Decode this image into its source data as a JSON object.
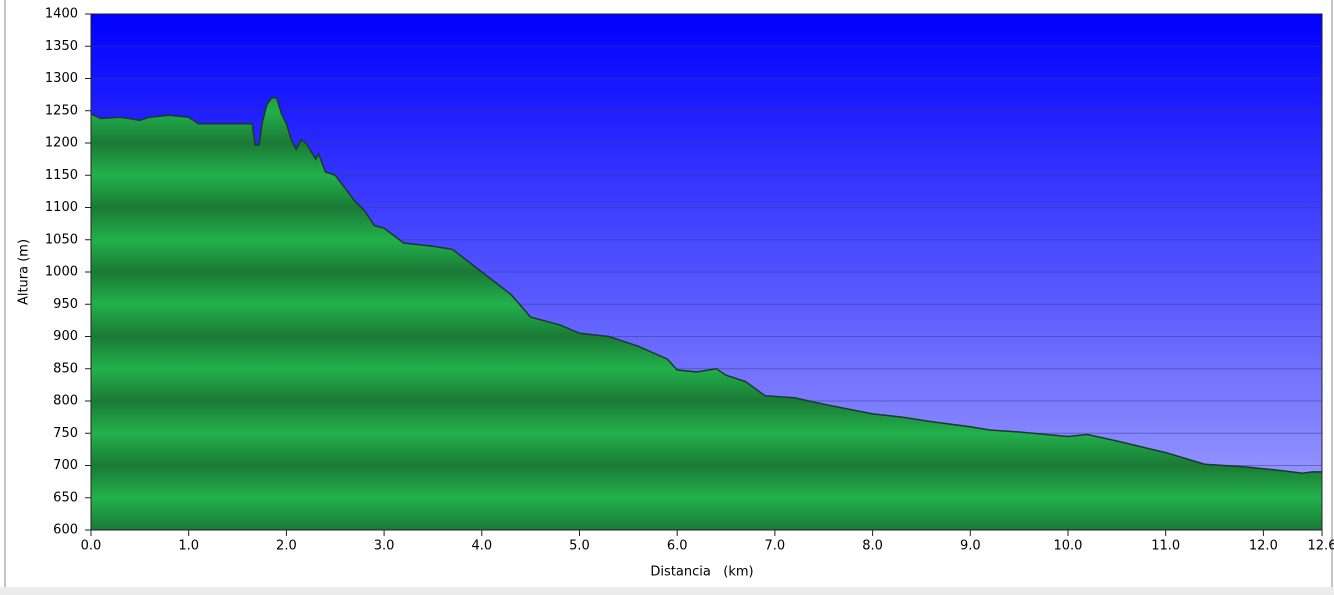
{
  "chart_data": {
    "type": "area",
    "x_label": "Distancia   (km)",
    "y_label": "Altura (m)",
    "xlim": [
      0,
      12.6
    ],
    "ylim": [
      600,
      1400
    ],
    "xticks": [
      {
        "value": 0,
        "label": "0.0"
      },
      {
        "value": 1,
        "label": "1.0"
      },
      {
        "value": 2,
        "label": "2.0"
      },
      {
        "value": 3,
        "label": "3.0"
      },
      {
        "value": 4,
        "label": "4.0"
      },
      {
        "value": 5,
        "label": "5.0"
      },
      {
        "value": 6,
        "label": "6.0"
      },
      {
        "value": 7,
        "label": "7.0"
      },
      {
        "value": 8,
        "label": "8.0"
      },
      {
        "value": 9,
        "label": "9.0"
      },
      {
        "value": 10,
        "label": "10.0"
      },
      {
        "value": 11,
        "label": "11.0"
      },
      {
        "value": 12,
        "label": "12.0"
      },
      {
        "value": 12.6,
        "label": "12.6"
      }
    ],
    "yticks": [
      600,
      650,
      700,
      750,
      800,
      850,
      900,
      950,
      1000,
      1050,
      1100,
      1150,
      1200,
      1250,
      1300,
      1350,
      1400
    ],
    "grid": true,
    "series": [
      {
        "color": "#1fa844",
        "x": [
          0,
          0.1,
          0.3,
          0.5,
          0.6,
          0.8,
          1.0,
          1.1,
          1.4,
          1.65,
          1.68,
          1.72,
          1.75,
          1.8,
          1.85,
          1.9,
          1.95,
          2.0,
          2.05,
          2.1,
          2.15,
          2.2,
          2.3,
          2.33,
          2.4,
          2.5,
          2.6,
          2.7,
          2.8,
          2.9,
          3.0,
          3.2,
          3.5,
          3.7,
          4.0,
          4.3,
          4.5,
          4.8,
          5.0,
          5.3,
          5.6,
          5.9,
          6.0,
          6.2,
          6.4,
          6.5,
          6.7,
          6.9,
          7.2,
          7.5,
          8.0,
          8.3,
          8.6,
          9.0,
          9.2,
          9.5,
          10.0,
          10.2,
          10.5,
          11.0,
          11.4,
          11.8,
          12.2,
          12.4,
          12.5,
          12.6
        ],
        "values": [
          1245,
          1238,
          1240,
          1235,
          1240,
          1243,
          1240,
          1230,
          1230,
          1230,
          1197,
          1197,
          1230,
          1260,
          1270,
          1270,
          1245,
          1230,
          1205,
          1190,
          1205,
          1200,
          1175,
          1183,
          1155,
          1150,
          1130,
          1110,
          1095,
          1072,
          1068,
          1045,
          1040,
          1035,
          1000,
          965,
          930,
          918,
          905,
          900,
          885,
          865,
          848,
          845,
          850,
          840,
          830,
          808,
          805,
          795,
          780,
          775,
          768,
          760,
          755,
          752,
          745,
          748,
          738,
          720,
          702,
          698,
          692,
          688,
          690,
          690
        ]
      }
    ]
  }
}
